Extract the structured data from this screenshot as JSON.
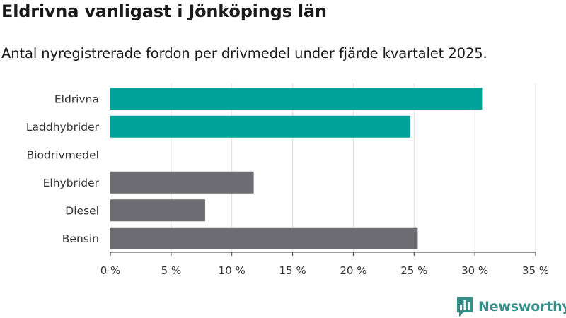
{
  "header": {
    "title": "Eldrivna vanligast i Jönköpings län",
    "subtitle": "Antal nyregistrerade fordon per drivmedel under fjärde kvartalet 2025."
  },
  "brand": {
    "name": "Newsworthy",
    "color": "#35908a",
    "icon": "newsworthy-logo-icon"
  },
  "colors": {
    "highlight": "#00a39a",
    "other": "#6d6c72",
    "grid": "#dcdcdc",
    "axis": "#333333"
  },
  "chart_data": {
    "type": "bar",
    "orientation": "horizontal",
    "title": "Eldrivna vanligast i Jönköpings län",
    "subtitle": "Antal nyregistrerade fordon per drivmedel under fjärde kvartalet 2025.",
    "categories": [
      "Eldrivna",
      "Laddhybrider",
      "Biodrivmedel",
      "Elhybrider",
      "Diesel",
      "Bensin"
    ],
    "values": [
      30.6,
      24.7,
      0.0,
      11.8,
      7.8,
      25.3
    ],
    "highlight": [
      true,
      true,
      true,
      false,
      false,
      false
    ],
    "xlim": [
      0,
      35
    ],
    "xticks": [
      0,
      5,
      10,
      15,
      20,
      25,
      30,
      35
    ],
    "xtick_labels": [
      "0 %",
      "5 %",
      "10 %",
      "15 %",
      "20 %",
      "25 %",
      "30 %",
      "35 %"
    ],
    "xlabel": "",
    "ylabel": "",
    "grid": true
  }
}
